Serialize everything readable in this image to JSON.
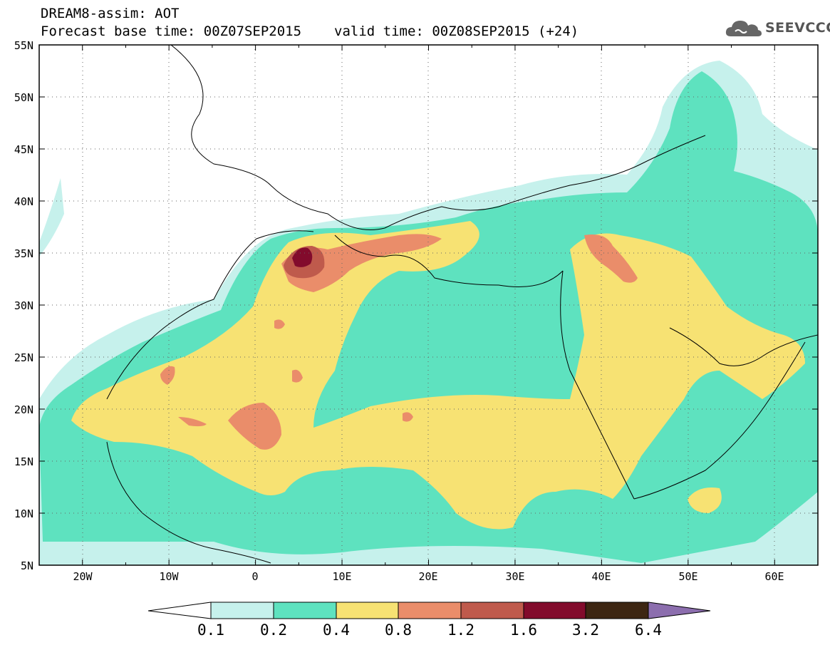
{
  "header": {
    "title": "DREAM8-assim: AOT",
    "base_time": "Forecast base time: 00Z07SEP2015",
    "valid_time": "valid time: 00Z08SEP2015 (+24)"
  },
  "logo": {
    "text": "SEEVCCC",
    "icon": "cloud-icon"
  },
  "map": {
    "lat_labels": [
      "55N",
      "50N",
      "45N",
      "40N",
      "35N",
      "30N",
      "25N",
      "20N",
      "15N",
      "10N",
      "5N"
    ],
    "lon_labels": [
      "20W",
      "10W",
      "0",
      "10E",
      "20E",
      "30E",
      "40E",
      "50E",
      "60E"
    ],
    "lat_range": [
      5,
      55
    ],
    "lon_range": [
      -25,
      65
    ],
    "grid": "dotted"
  },
  "legend": {
    "levels": [
      "0.1",
      "0.2",
      "0.4",
      "0.8",
      "1.2",
      "1.6",
      "3.2",
      "6.4"
    ],
    "colors": [
      "#ffffff",
      "#c6f1ec",
      "#5ee2bf",
      "#f7e273",
      "#ea8d6a",
      "#bf5a4c",
      "#820b2c",
      "#3d2612",
      "#8c6eae"
    ]
  }
}
